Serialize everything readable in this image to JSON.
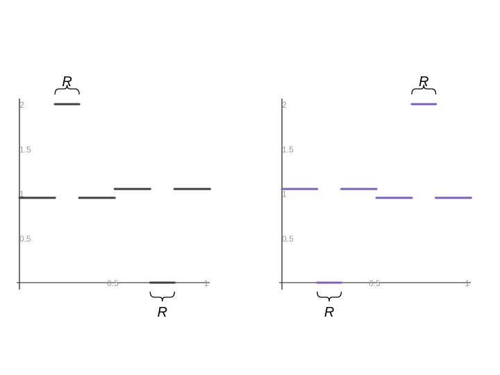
{
  "chart_data": [
    {
      "type": "line",
      "style": "piecewise-horizontal-segments",
      "color": "#404040",
      "xlim": [
        0,
        1
      ],
      "ylim": [
        0,
        2
      ],
      "x_ticks": [
        "0.5",
        "1"
      ],
      "y_ticks": [
        "0.5",
        "1",
        "1.5",
        "2"
      ],
      "grid": false,
      "segments": [
        {
          "x": [
            0,
            0.19
          ],
          "y": 0.95
        },
        {
          "x": [
            0.19,
            0.32
          ],
          "y": 2,
          "label": "R"
        },
        {
          "x": [
            0.32,
            0.51
          ],
          "y": 0.95
        },
        {
          "x": [
            0.51,
            0.7
          ],
          "y": 1.05
        },
        {
          "x": [
            0.7,
            0.83
          ],
          "y": 0,
          "label": "R"
        },
        {
          "x": [
            0.83,
            1.02
          ],
          "y": 1.05
        }
      ]
    },
    {
      "type": "line",
      "style": "piecewise-horizontal-segments",
      "color": "#7b62b8",
      "xlim": [
        0,
        1
      ],
      "ylim": [
        0,
        2
      ],
      "x_ticks": [
        "0.5",
        "1"
      ],
      "y_ticks": [
        "0.5",
        "1",
        "1.5",
        "2"
      ],
      "grid": false,
      "segments": [
        {
          "x": [
            0,
            0.19
          ],
          "y": 1.05
        },
        {
          "x": [
            0.19,
            0.32
          ],
          "y": 0,
          "label": "R"
        },
        {
          "x": [
            0.32,
            0.51
          ],
          "y": 1.05
        },
        {
          "x": [
            0.51,
            0.7
          ],
          "y": 0.95
        },
        {
          "x": [
            0.7,
            0.83
          ],
          "y": 2,
          "label": "R"
        },
        {
          "x": [
            0.83,
            1.02
          ],
          "y": 0.95
        }
      ]
    }
  ]
}
